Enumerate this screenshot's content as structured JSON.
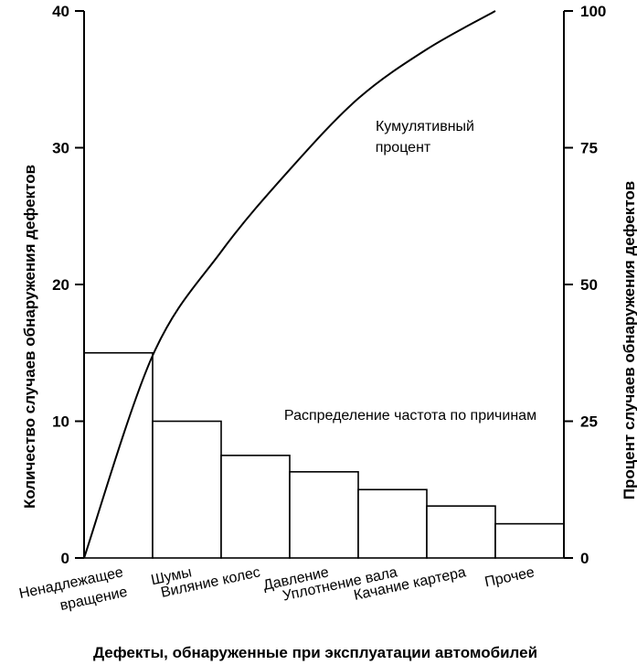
{
  "chart_data": {
    "type": "bar",
    "xlabel": "Дефекты, обнаруженные при эксплуатации автомобилей",
    "ylabel": "Количество случаев обнаружения дефектов",
    "y2label": "Процент случаев обнаружения дефектов",
    "ylim": [
      0,
      40
    ],
    "y2lim": [
      0,
      100
    ],
    "yticks": [
      0,
      10,
      20,
      30,
      40
    ],
    "y2ticks": [
      0,
      25,
      50,
      75,
      100
    ],
    "grid": false,
    "categories": [
      [
        "Ненадлежащее",
        "вращение"
      ],
      [
        "Шумы"
      ],
      [
        "Виляние колес"
      ],
      [
        "Давление"
      ],
      [
        "Уплотнение вала"
      ],
      [
        "Качание картера"
      ],
      [
        "Прочее"
      ]
    ],
    "series": [
      {
        "type": "bar",
        "values": [
          15,
          10,
          7.5,
          6.3,
          5,
          3.8,
          2.5
        ]
      },
      {
        "type": "line",
        "axis": "right",
        "values": [
          0,
          37,
          56,
          71,
          84,
          93,
          100
        ]
      }
    ],
    "annotations": {
      "cumulative": [
        "Кумулятивный",
        "процент"
      ],
      "distribution": "Распределение частота по причинам"
    }
  }
}
